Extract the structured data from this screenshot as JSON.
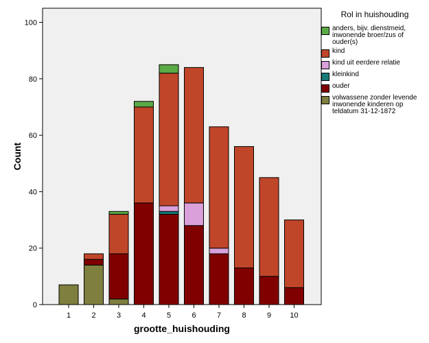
{
  "chart_data": {
    "type": "bar",
    "stacked": true,
    "xlabel": "grootte_huishouding",
    "ylabel": "Count",
    "ylim": [
      0,
      105
    ],
    "yticks": [
      0,
      20,
      40,
      60,
      80,
      100
    ],
    "categories": [
      "1",
      "2",
      "3",
      "4",
      "5",
      "6",
      "7",
      "8",
      "9",
      "10"
    ],
    "legend_title": "Rol in huishouding",
    "legend_position": "right",
    "legend_order": [
      "anders, bijv. dienstmeid, inwonende broer/zus of ouder(s)",
      "kind",
      "kind uit eerdere relatie",
      "kleinkind",
      "ouder",
      "volwassene zonder levende inwonende kinderen op teldatum 31-12-1872"
    ],
    "series": [
      {
        "name": "volwassene zonder levende inwonende kinderen op teldatum 31-12-1872",
        "color": "#7f7f3f",
        "values": [
          7,
          14,
          2,
          0,
          0,
          0,
          0,
          0,
          0,
          0
        ]
      },
      {
        "name": "ouder",
        "color": "#800000",
        "values": [
          0,
          2,
          16,
          36,
          32,
          28,
          18,
          13,
          10,
          6
        ]
      },
      {
        "name": "kleinkind",
        "color": "#1a7a7a",
        "values": [
          0,
          0,
          0,
          0,
          1,
          0,
          0,
          0,
          0,
          0
        ]
      },
      {
        "name": "kind uit eerdere relatie",
        "color": "#d9a0d9",
        "values": [
          0,
          0,
          0,
          0,
          2,
          8,
          2,
          0,
          0,
          0
        ]
      },
      {
        "name": "kind",
        "color": "#c0462a",
        "values": [
          0,
          2,
          14,
          34,
          47,
          48,
          43,
          43,
          35,
          24
        ]
      },
      {
        "name": "anders, bijv. dienstmeid, inwonende broer/zus of ouder(s)",
        "color": "#5aaa46",
        "values": [
          0,
          0,
          1,
          2,
          3,
          0,
          0,
          0,
          0,
          0
        ]
      }
    ]
  }
}
